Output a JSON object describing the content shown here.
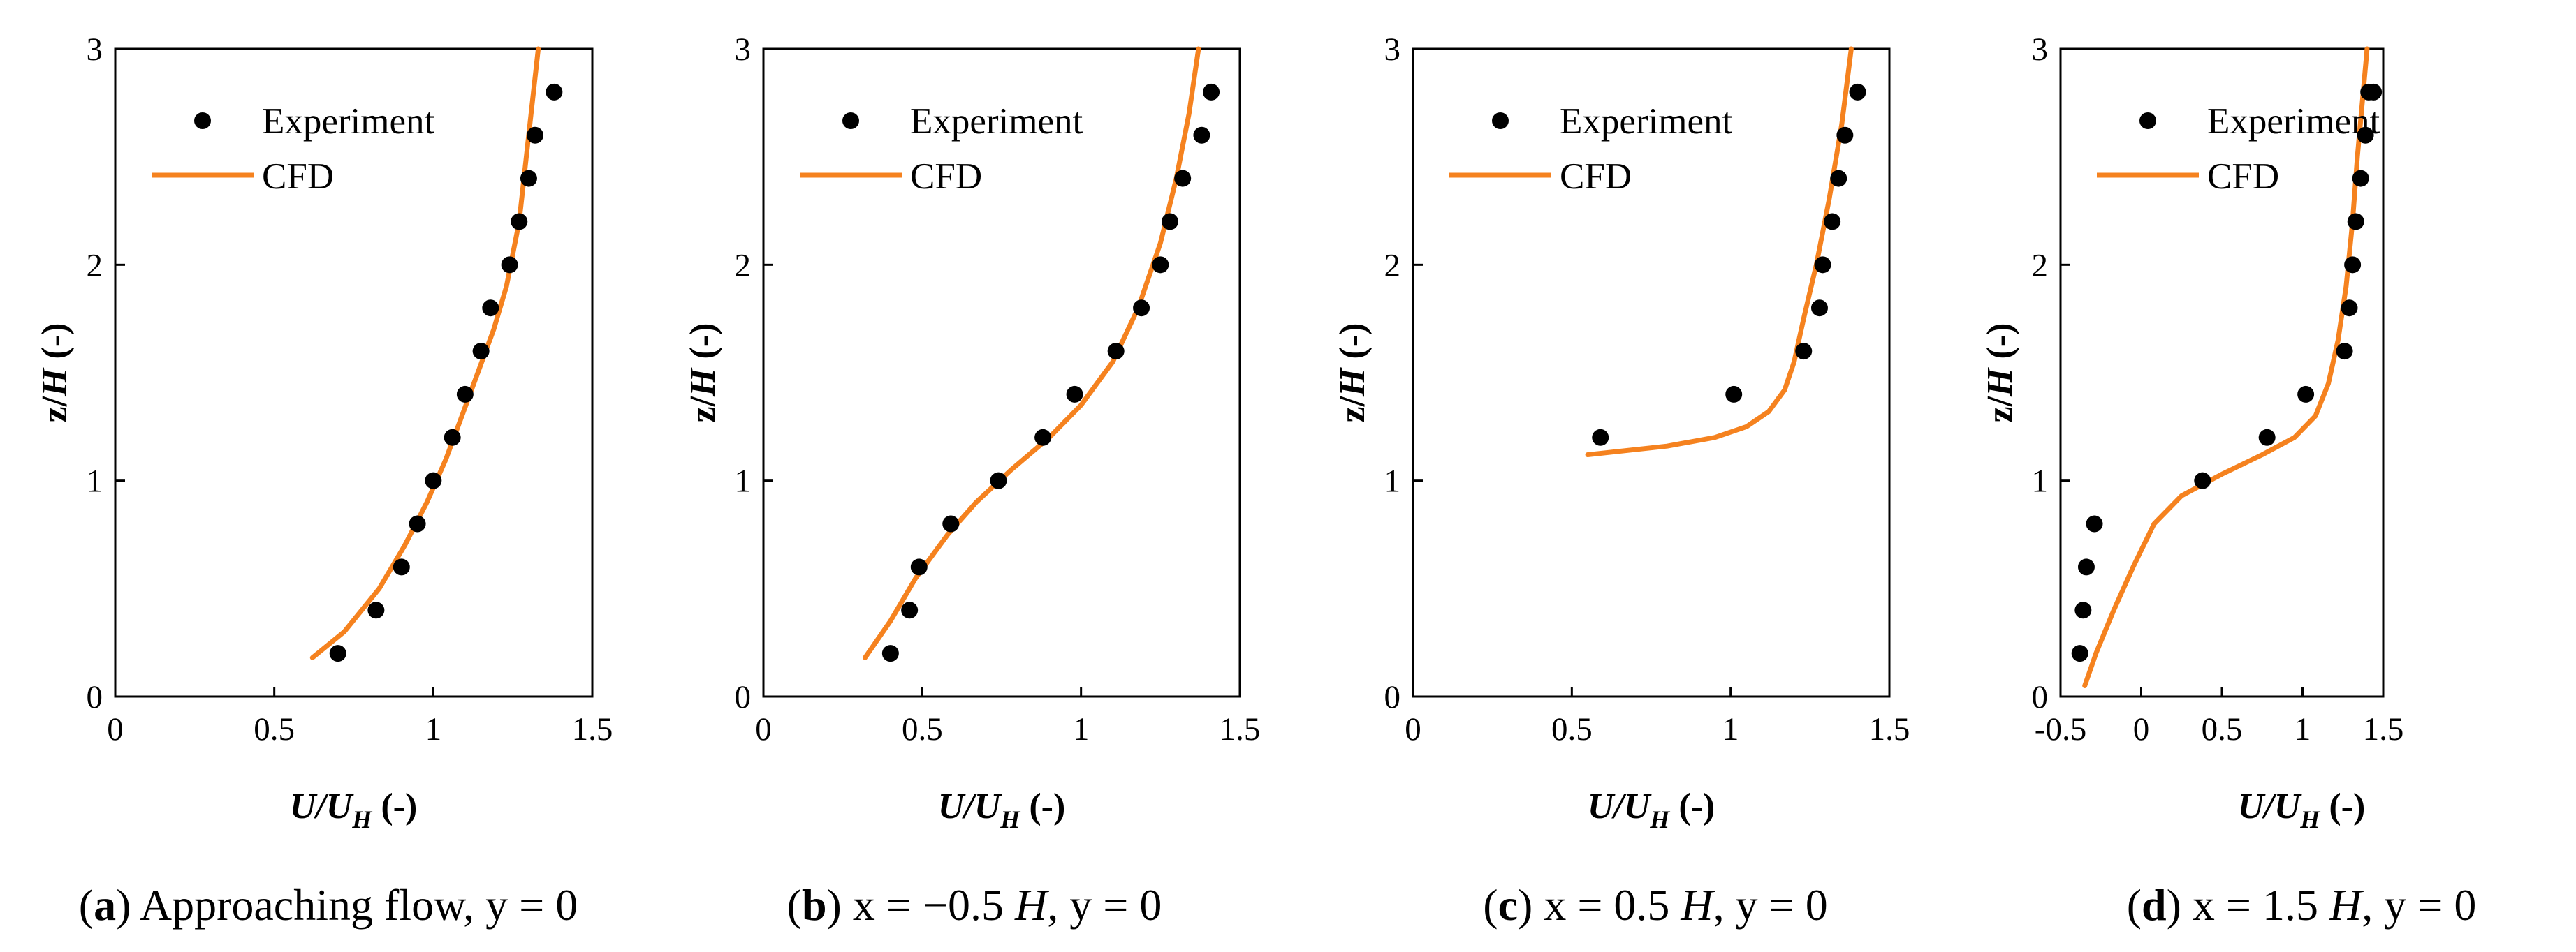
{
  "colors": {
    "experiment": "#000000",
    "cfd": "#f5821f",
    "axis": "#000000"
  },
  "chart_data": [
    {
      "type": "scatter+line",
      "caption_letter": "a",
      "caption_rest": " Approaching flow, y = 0",
      "xlabel": "U/U",
      "xlabel_sub": "H",
      "xlabel_suffix": " (-)",
      "ylabel_main": "z/",
      "ylabel_italic": "H",
      "ylabel_suffix": " (-)",
      "xlim": [
        0,
        1.5
      ],
      "ylim": [
        0,
        3
      ],
      "xticks": [
        0,
        0.5,
        1,
        1.5
      ],
      "xtick_labels": [
        "0",
        "0.5",
        "1",
        "1.5"
      ],
      "yticks": [
        0,
        1,
        2,
        3
      ],
      "ytick_labels": [
        "0",
        "1",
        "2",
        "3"
      ],
      "legend": {
        "experiment": "Experiment",
        "cfd": "CFD",
        "position": "top-left"
      },
      "experiment": {
        "x": [
          0.7,
          0.82,
          0.9,
          0.95,
          1.0,
          1.06,
          1.1,
          1.15,
          1.18,
          1.24,
          1.27,
          1.3,
          1.32,
          1.38
        ],
        "y": [
          0.2,
          0.4,
          0.6,
          0.8,
          1.0,
          1.2,
          1.4,
          1.6,
          1.8,
          2.0,
          2.2,
          2.4,
          2.6,
          2.8
        ]
      },
      "cfd": {
        "x": [
          0.62,
          0.72,
          0.83,
          0.91,
          0.98,
          1.04,
          1.09,
          1.14,
          1.19,
          1.23,
          1.27,
          1.3,
          1.33
        ],
        "y": [
          0.18,
          0.3,
          0.5,
          0.7,
          0.9,
          1.1,
          1.3,
          1.5,
          1.7,
          1.9,
          2.2,
          2.6,
          3.0
        ]
      }
    },
    {
      "type": "scatter+line",
      "caption_letter": "b",
      "caption_pre": " x = −0.5 ",
      "caption_italic": "H",
      "caption_post": ", y = 0",
      "xlabel": "U/U",
      "xlabel_sub": "H",
      "xlabel_suffix": " (-)",
      "ylabel_main": "z/",
      "ylabel_italic": "H",
      "ylabel_suffix": " (-)",
      "xlim": [
        0,
        1.5
      ],
      "ylim": [
        0,
        3
      ],
      "xticks": [
        0,
        0.5,
        1,
        1.5
      ],
      "xtick_labels": [
        "0",
        "0.5",
        "1",
        "1.5"
      ],
      "yticks": [
        0,
        1,
        2,
        3
      ],
      "ytick_labels": [
        "0",
        "1",
        "2",
        "3"
      ],
      "legend": {
        "experiment": "Experiment",
        "cfd": "CFD",
        "position": "top-left"
      },
      "experiment": {
        "x": [
          0.4,
          0.46,
          0.49,
          0.59,
          0.74,
          0.88,
          0.98,
          1.11,
          1.19,
          1.25,
          1.28,
          1.32,
          1.38,
          1.41
        ],
        "y": [
          0.2,
          0.4,
          0.6,
          0.8,
          1.0,
          1.2,
          1.4,
          1.6,
          1.8,
          2.0,
          2.2,
          2.4,
          2.6,
          2.8
        ]
      },
      "cfd": {
        "x": [
          0.32,
          0.4,
          0.48,
          0.58,
          0.67,
          0.78,
          0.9,
          1.0,
          1.1,
          1.18,
          1.25,
          1.3,
          1.34,
          1.37
        ],
        "y": [
          0.18,
          0.35,
          0.55,
          0.75,
          0.9,
          1.05,
          1.2,
          1.35,
          1.55,
          1.8,
          2.1,
          2.4,
          2.7,
          3.0
        ]
      }
    },
    {
      "type": "scatter+line",
      "caption_letter": "c",
      "caption_pre": " x = 0.5 ",
      "caption_italic": "H",
      "caption_post": ", y = 0",
      "xlabel": "U/U",
      "xlabel_sub": "H",
      "xlabel_suffix": " (-)",
      "ylabel_main": "z/",
      "ylabel_italic": "H",
      "ylabel_suffix": " (-)",
      "xlim": [
        0,
        1.5
      ],
      "ylim": [
        0,
        3
      ],
      "xticks": [
        0,
        0.5,
        1,
        1.5
      ],
      "xtick_labels": [
        "0",
        "0.5",
        "1",
        "1.5"
      ],
      "yticks": [
        0,
        1,
        2,
        3
      ],
      "ytick_labels": [
        "0",
        "1",
        "2",
        "3"
      ],
      "legend": {
        "experiment": "Experiment",
        "cfd": "CFD",
        "position": "top-left"
      },
      "experiment": {
        "x": [
          0.59,
          1.01,
          1.23,
          1.28,
          1.29,
          1.32,
          1.34,
          1.36,
          1.4
        ],
        "y": [
          1.2,
          1.4,
          1.6,
          1.8,
          2.0,
          2.2,
          2.4,
          2.6,
          2.8
        ]
      },
      "cfd": {
        "x": [
          0.55,
          0.8,
          0.95,
          1.05,
          1.12,
          1.17,
          1.2,
          1.23,
          1.27,
          1.31,
          1.35,
          1.38
        ],
        "y": [
          1.12,
          1.16,
          1.2,
          1.25,
          1.32,
          1.42,
          1.55,
          1.75,
          2.0,
          2.3,
          2.65,
          3.0
        ]
      }
    },
    {
      "type": "scatter+line",
      "caption_letter": "d",
      "caption_pre": " x = 1.5 ",
      "caption_italic": "H",
      "caption_post": ", y = 0",
      "xlabel": "U/U",
      "xlabel_sub": "H",
      "xlabel_suffix": " (-)",
      "ylabel_main": "z/",
      "ylabel_italic": "H",
      "ylabel_suffix": " (-)",
      "xlim": [
        -0.5,
        1.5
      ],
      "ylim": [
        0,
        3
      ],
      "xticks": [
        -0.5,
        0,
        0.5,
        1,
        1.5
      ],
      "xtick_labels": [
        "-0.5",
        "0",
        "0.5",
        "1",
        "1.5"
      ],
      "yticks": [
        0,
        1,
        2,
        3
      ],
      "ytick_labels": [
        "0",
        "1",
        "2",
        "3"
      ],
      "legend": {
        "experiment": "Experiment",
        "cfd": "CFD",
        "position": "top-left"
      },
      "experiment": {
        "x": [
          -0.38,
          -0.36,
          -0.34,
          -0.29,
          0.38,
          0.78,
          1.02,
          1.26,
          1.29,
          1.31,
          1.33,
          1.36,
          1.39,
          1.41,
          1.44
        ],
        "y": [
          0.2,
          0.4,
          0.6,
          0.8,
          1.0,
          1.2,
          1.4,
          1.6,
          1.8,
          2.0,
          2.2,
          2.4,
          2.6,
          2.8,
          2.8
        ]
      },
      "cfd": {
        "x": [
          -0.35,
          -0.28,
          -0.17,
          -0.05,
          0.08,
          0.25,
          0.5,
          0.75,
          0.95,
          1.08,
          1.16,
          1.22,
          1.27,
          1.31,
          1.34,
          1.37,
          1.4
        ],
        "y": [
          0.05,
          0.2,
          0.4,
          0.6,
          0.8,
          0.93,
          1.03,
          1.12,
          1.2,
          1.3,
          1.45,
          1.65,
          1.9,
          2.2,
          2.5,
          2.75,
          3.0
        ]
      }
    }
  ]
}
